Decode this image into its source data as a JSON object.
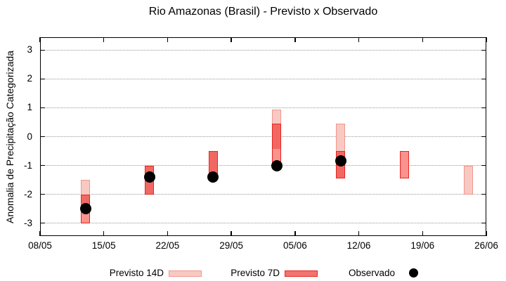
{
  "colors": {
    "p14_fill": "#f8c9c3",
    "p14_border": "#f0988d",
    "p7_fill": "#fa938d",
    "p7_border": "#e52621",
    "overlap_fill": "#f16862",
    "legend_p7_fill": "#f3736d",
    "observado": "#000000",
    "grid": "#999999"
  },
  "chart_data": {
    "type": "bar",
    "subtype": "range-bars-with-scatter-overlay",
    "title": "Rio Amazonas (Brasil) - Previsto x Observado",
    "ylabel": "Anomalia de Precipitação Categorizada",
    "xlabel": "",
    "ylim": [
      -3.45,
      3.45
    ],
    "grid": "horizontal-dotted",
    "legend_position": "bottom",
    "y_tick_values": [
      3,
      2,
      1,
      0,
      -1,
      -2,
      -3
    ],
    "x_tick_labels": [
      "08/05",
      "15/05",
      "22/05",
      "29/05",
      "05/06",
      "12/06",
      "19/06",
      "26/06"
    ],
    "x_tick_days": [
      0,
      7,
      14,
      21,
      28,
      35,
      42,
      49
    ],
    "x_range_days": [
      0,
      49
    ],
    "bar_width_days": 1,
    "series": [
      {
        "name": "Previsto 14D",
        "type": "range_bar",
        "points": [
          {
            "date": "13/05",
            "day": 5,
            "low": -2.5,
            "high": -1.5
          },
          {
            "date": "20/05",
            "day": 12,
            "low": -2.0,
            "high": -1.0
          },
          {
            "date": "27/05",
            "day": 19,
            "low": -1.45,
            "high": -0.5
          },
          {
            "date": "03/06",
            "day": 26,
            "low": -0.45,
            "high": 0.95
          },
          {
            "date": "10/06",
            "day": 33,
            "low": -1.45,
            "high": 0.45
          },
          {
            "date": "24/06",
            "day": 47,
            "low": -2.0,
            "high": -1.0
          }
        ]
      },
      {
        "name": "Previsto 7D",
        "type": "range_bar",
        "points": [
          {
            "date": "13/05",
            "day": 5,
            "low": -3.0,
            "high": -2.0
          },
          {
            "date": "20/05",
            "day": 12,
            "low": -2.0,
            "high": -1.0
          },
          {
            "date": "27/05",
            "day": 19,
            "low": -1.45,
            "high": -0.5
          },
          {
            "date": "03/06",
            "day": 26,
            "low": -1.0,
            "high": 0.45
          },
          {
            "date": "10/06",
            "day": 33,
            "low": -1.45,
            "high": -0.5
          },
          {
            "date": "17/06",
            "day": 40,
            "low": -1.45,
            "high": -0.5
          }
        ]
      },
      {
        "name": "Observado",
        "type": "scatter",
        "points": [
          {
            "date": "13/05",
            "day": 5,
            "value": -2.5
          },
          {
            "date": "20/05",
            "day": 12,
            "value": -1.4
          },
          {
            "date": "27/05",
            "day": 19,
            "value": -1.4
          },
          {
            "date": "03/06",
            "day": 26,
            "value": -1.0
          },
          {
            "date": "10/06",
            "day": 33,
            "value": -0.85
          }
        ]
      }
    ]
  }
}
